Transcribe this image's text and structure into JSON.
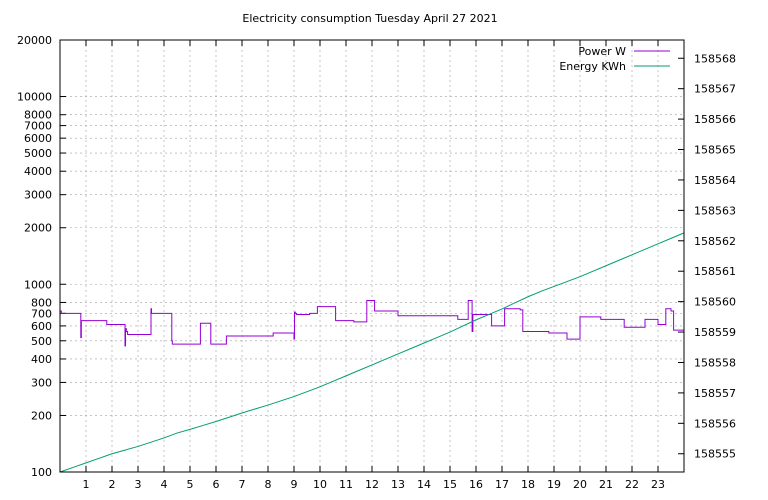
{
  "chart_data": {
    "type": "line",
    "title": "Electricity consumption Tuesday April 27 2021",
    "xlabel": "",
    "ylabel": "",
    "y2label": "",
    "xlim": [
      0,
      24
    ],
    "ylim": [
      100,
      20000
    ],
    "y_scale": "log",
    "y2lim": [
      158554.4,
      158568.6
    ],
    "grid": true,
    "legend_position": "top-right",
    "x_ticks": [
      1,
      2,
      3,
      4,
      5,
      6,
      7,
      8,
      9,
      10,
      11,
      12,
      13,
      14,
      15,
      16,
      17,
      18,
      19,
      20,
      21,
      22,
      23
    ],
    "y_ticks": [
      100,
      200,
      300,
      400,
      500,
      600,
      700,
      800,
      1000,
      2000,
      3000,
      4000,
      5000,
      6000,
      7000,
      8000,
      10000,
      20000
    ],
    "y_tick_labels": [
      "100",
      "200",
      "300",
      "400",
      "500",
      "600",
      "700",
      "800",
      "1000",
      "2000",
      "3000",
      "4000",
      "5000",
      "6000",
      "7000",
      "8000",
      "10000",
      "20000"
    ],
    "y2_ticks": [
      158555,
      158556,
      158557,
      158558,
      158559,
      158560,
      158561,
      158562,
      158563,
      158564,
      158565,
      158566,
      158567,
      158568
    ],
    "series": [
      {
        "name": "Power W",
        "axis": "left",
        "color": "#9400d3",
        "x": [
          0,
          0.05,
          0.08,
          0.8,
          0.82,
          0.85,
          1.8,
          2.5,
          2.52,
          2.55,
          2.6,
          2.65,
          3.5,
          3.52,
          3.55,
          4.3,
          4.32,
          4.4,
          5.4,
          5.8,
          6.4,
          7.5,
          8.2,
          9.0,
          9.02,
          9.05,
          9.1,
          9.6,
          9.9,
          10.0,
          10.6,
          11.3,
          11.8,
          12.1,
          12.8,
          13.0,
          14.5,
          15.3,
          15.7,
          15.8,
          15.85,
          15.88,
          16.6,
          17.1,
          17.7,
          17.8,
          17.85,
          18.8,
          19.5,
          20.0,
          20.8,
          21.7,
          22.5,
          23.0,
          23.3,
          23.5,
          23.6,
          24.0
        ],
        "values": [
          720,
          700,
          700,
          520,
          640,
          640,
          610,
          470,
          580,
          560,
          540,
          540,
          740,
          700,
          700,
          500,
          480,
          480,
          620,
          480,
          530,
          530,
          550,
          510,
          710,
          700,
          690,
          700,
          760,
          760,
          640,
          630,
          820,
          720,
          720,
          680,
          680,
          650,
          820,
          820,
          560,
          690,
          600,
          740,
          730,
          560,
          560,
          550,
          510,
          670,
          650,
          590,
          650,
          610,
          740,
          720,
          570,
          570
        ]
      },
      {
        "name": "Energy KWh",
        "axis": "right",
        "color": "#009e73",
        "x": [
          0,
          0.5,
          1,
          1.5,
          2,
          2.5,
          3,
          3.5,
          4,
          4.5,
          5,
          5.5,
          6,
          6.5,
          7,
          7.5,
          8,
          8.5,
          9,
          9.5,
          10,
          10.5,
          11,
          11.5,
          12,
          12.5,
          13,
          13.5,
          14,
          14.5,
          15,
          15.5,
          16,
          16.5,
          17,
          17.5,
          18,
          18.5,
          19,
          19.5,
          20,
          20.5,
          21,
          21.5,
          22,
          22.5,
          23,
          23.5,
          24
        ],
        "values": [
          158554.4,
          158554.55,
          158554.7,
          158554.85,
          158555.0,
          158555.12,
          158555.24,
          158555.38,
          158555.52,
          158555.68,
          158555.8,
          158555.93,
          158556.06,
          158556.2,
          158556.34,
          158556.47,
          158556.6,
          158556.74,
          158556.88,
          158557.04,
          158557.2,
          158557.38,
          158557.56,
          158557.74,
          158557.92,
          158558.1,
          158558.28,
          158558.46,
          158558.64,
          158558.82,
          158559.0,
          158559.2,
          158559.4,
          158559.58,
          158559.76,
          158559.96,
          158560.16,
          158560.34,
          158560.5,
          158560.66,
          158560.82,
          158561.0,
          158561.18,
          158561.36,
          158561.54,
          158561.72,
          158561.9,
          158562.08,
          158562.26
        ]
      }
    ]
  }
}
